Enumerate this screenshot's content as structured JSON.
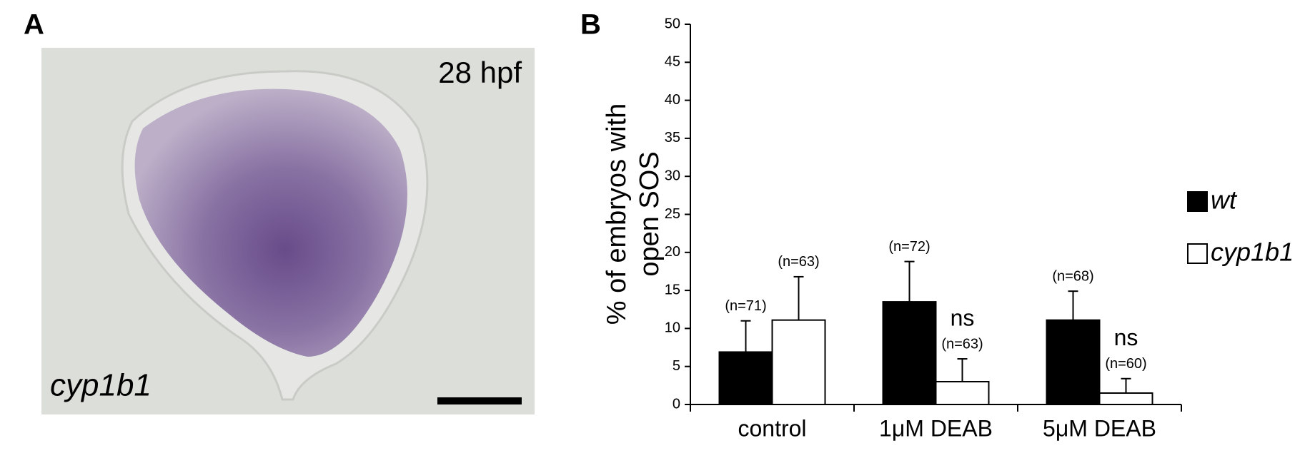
{
  "panel_labels": [
    "A",
    "B"
  ],
  "image": {
    "stage": "28 hpf",
    "gene": "cyp1b1"
  },
  "chart_data": {
    "type": "bar",
    "ylabel": [
      "% of embryos with",
      "open SOS"
    ],
    "categories": [
      "control",
      "1μM DEAB",
      "5μM DEAB"
    ],
    "series": [
      {
        "name": "wt",
        "color": "#000000",
        "values": [
          6.9,
          13.5,
          11.1
        ],
        "errors": [
          4.1,
          5.3,
          3.8
        ],
        "n_labels": [
          "(n=71)",
          "(n=72)",
          "(n=68)"
        ],
        "annotations": [
          null,
          null,
          null
        ]
      },
      {
        "name": "cyp1b1",
        "color": "#ffffff",
        "values": [
          11.1,
          3.0,
          1.5
        ],
        "errors": [
          5.7,
          3.0,
          1.9
        ],
        "n_labels": [
          "(n=63)",
          "(n=63)",
          "(n=60)"
        ],
        "annotations": [
          null,
          "ns",
          "ns"
        ]
      }
    ],
    "ylim": [
      0,
      50
    ],
    "yticks": [
      0,
      5,
      10,
      15,
      20,
      25,
      30,
      35,
      40,
      45,
      50
    ]
  }
}
